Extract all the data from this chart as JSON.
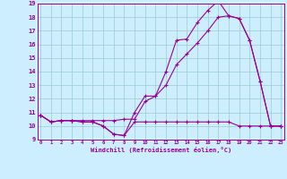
{
  "xlabel": "Windchill (Refroidissement éolien,°C)",
  "bg_color": "#cceeff",
  "line_color": "#990099",
  "grid_color": "#99cccc",
  "xmin": 0,
  "xmax": 23,
  "ymin": 9,
  "ymax": 19,
  "line1_x": [
    0,
    1,
    2,
    3,
    4,
    5,
    6,
    7,
    8,
    9,
    10,
    11,
    12,
    13,
    14,
    15,
    16,
    17,
    18,
    19,
    20,
    21,
    22,
    23
  ],
  "line1_y": [
    10.8,
    10.3,
    10.4,
    10.4,
    10.3,
    10.3,
    10.0,
    9.4,
    9.3,
    10.3,
    10.3,
    10.3,
    10.3,
    10.3,
    10.3,
    10.3,
    10.3,
    10.3,
    10.3,
    10.0,
    10.0,
    10.0,
    10.0,
    10.0
  ],
  "line2_x": [
    0,
    1,
    2,
    3,
    4,
    5,
    6,
    7,
    8,
    9,
    10,
    11,
    12,
    13,
    14,
    15,
    16,
    17,
    18,
    19,
    20,
    21,
    22,
    23
  ],
  "line2_y": [
    10.8,
    10.3,
    10.4,
    10.4,
    10.3,
    10.3,
    10.0,
    9.4,
    9.3,
    11.0,
    12.2,
    12.2,
    14.0,
    16.3,
    16.4,
    17.6,
    18.5,
    19.2,
    18.1,
    17.9,
    16.3,
    13.3,
    10.0,
    10.0
  ],
  "line3_x": [
    0,
    1,
    2,
    3,
    4,
    5,
    6,
    7,
    8,
    9,
    10,
    11,
    12,
    13,
    14,
    15,
    16,
    17,
    18,
    19,
    20,
    21,
    22,
    23
  ],
  "line3_y": [
    10.8,
    10.3,
    10.4,
    10.4,
    10.4,
    10.4,
    10.4,
    10.4,
    10.5,
    10.5,
    11.8,
    12.2,
    13.0,
    14.5,
    15.3,
    16.1,
    17.0,
    18.0,
    18.1,
    17.9,
    16.3,
    13.3,
    10.0,
    10.0
  ]
}
